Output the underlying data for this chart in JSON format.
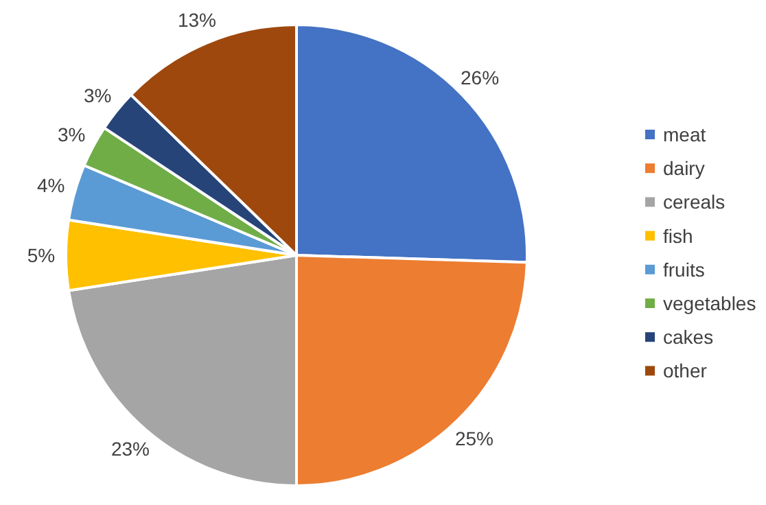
{
  "chart_data": {
    "type": "pie",
    "categories": [
      "meat",
      "dairy",
      "cereals",
      "fish",
      "fruits",
      "vegetables",
      "cakes",
      "other"
    ],
    "values": [
      26,
      25,
      23,
      5,
      4,
      3,
      3,
      13
    ],
    "colors": [
      "#4472c4",
      "#ed7d31",
      "#a5a5a5",
      "#ffc000",
      "#5b9bd5",
      "#70ad47",
      "#264478",
      "#9e480e"
    ],
    "value_labels": [
      "26%",
      "25%",
      "23%",
      "5%",
      "4%",
      "3%",
      "3%",
      "13%"
    ],
    "legend": "right"
  }
}
